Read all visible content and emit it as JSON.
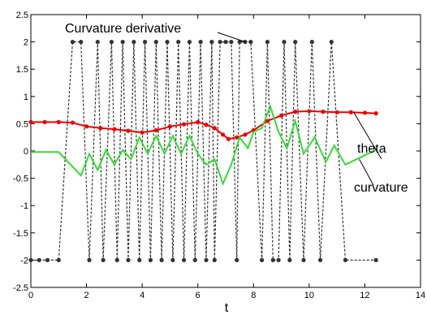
{
  "chart_data": {
    "type": "line",
    "xlabel": "t",
    "ylabel": "",
    "xlim": [
      0,
      14
    ],
    "ylim": [
      -2.5,
      2.5
    ],
    "xticks": [
      "0",
      "2",
      "4",
      "6",
      "8",
      "10",
      "12",
      "14"
    ],
    "yticks": [
      "-2.5",
      "-2",
      "-1.5",
      "-1",
      "-0.5",
      "0",
      "0.5",
      "1",
      "1.5",
      "2",
      "2.5"
    ],
    "grid": false,
    "annotations": [
      "Curvature derivative",
      "theta",
      "curvature"
    ],
    "series": [
      {
        "name": "Curvature derivative",
        "color": "#333333",
        "style": "dashed-markers",
        "x": [
          0,
          0.3,
          0.6,
          1.0,
          1.5,
          1.8,
          2.1,
          2.4,
          2.6,
          2.9,
          3.1,
          3.3,
          3.5,
          3.7,
          3.9,
          4.1,
          4.3,
          4.5,
          4.7,
          4.9,
          5.1,
          5.3,
          5.5,
          5.7,
          5.9,
          6.1,
          6.3,
          6.5,
          6.6,
          6.8,
          7.0,
          7.2,
          7.4,
          7.5,
          7.7,
          7.9,
          8.3,
          8.5,
          8.7,
          8.9,
          9.1,
          9.3,
          9.5,
          9.8,
          10.1,
          10.4,
          10.8,
          11.3,
          12.4
        ],
        "y": [
          -2,
          -2,
          -2,
          -2,
          2,
          2,
          -2,
          2,
          -2,
          2,
          -2,
          2,
          -2,
          2,
          -2,
          2,
          -2,
          2,
          -2,
          2,
          -2,
          2,
          -2,
          2,
          -2,
          2,
          -2,
          2,
          -2,
          2,
          2,
          2,
          -2,
          2,
          2,
          2,
          -2,
          2,
          -2,
          -2,
          2,
          -2,
          2,
          -2,
          2,
          -2,
          2,
          -2,
          -2
        ]
      },
      {
        "name": "theta",
        "color": "#ee0000",
        "style": "solid-markers",
        "x": [
          0,
          0.5,
          1.0,
          1.5,
          2.0,
          2.5,
          3.0,
          3.5,
          4.0,
          4.5,
          5.0,
          5.5,
          6.0,
          6.3,
          6.6,
          6.9,
          7.1,
          7.4,
          7.7,
          8.0,
          8.5,
          9.0,
          9.5,
          10.0,
          10.5,
          11.0,
          11.5,
          12.0,
          12.4
        ],
        "y": [
          0.53,
          0.53,
          0.53,
          0.52,
          0.45,
          0.42,
          0.4,
          0.37,
          0.34,
          0.38,
          0.45,
          0.49,
          0.53,
          0.48,
          0.42,
          0.3,
          0.22,
          0.25,
          0.3,
          0.38,
          0.55,
          0.65,
          0.72,
          0.73,
          0.72,
          0.71,
          0.71,
          0.7,
          0.69
        ]
      },
      {
        "name": "curvature",
        "color": "#33dd33",
        "style": "solid",
        "x": [
          0,
          1.0,
          1.8,
          2.1,
          2.4,
          2.7,
          3.0,
          3.3,
          3.6,
          3.9,
          4.2,
          4.5,
          4.8,
          5.1,
          5.4,
          5.7,
          6.0,
          6.3,
          6.6,
          6.9,
          7.2,
          7.5,
          7.8,
          8.0,
          8.3,
          8.6,
          8.9,
          9.2,
          9.5,
          9.8,
          10.2,
          10.6,
          10.9,
          11.3,
          12.4
        ],
        "y": [
          -0.02,
          -0.02,
          -0.45,
          -0.05,
          -0.35,
          0.02,
          -0.25,
          0.02,
          -0.15,
          0.25,
          -0.05,
          0.28,
          -0.05,
          0.28,
          -0.05,
          0.28,
          -0.05,
          -0.25,
          -0.15,
          -0.6,
          -0.25,
          0.25,
          0.05,
          0.35,
          0.42,
          0.82,
          0.35,
          0.05,
          0.55,
          -0.05,
          0.25,
          -0.2,
          0.1,
          -0.25,
          0.02
        ]
      }
    ]
  }
}
